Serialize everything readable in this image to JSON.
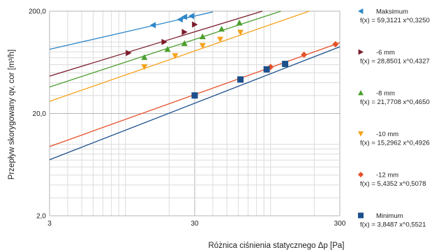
{
  "chart_data": {
    "type": "scatter",
    "xlabel": "Różnica ciśnienia statycznego Δp [Pa]",
    "ylabel": "Przepływ skorygowany qv, cor [m³/h]",
    "x_scale": "log",
    "y_scale": "log",
    "xlim": [
      3,
      300
    ],
    "ylim": [
      2,
      200
    ],
    "x_ticks": [
      "3",
      "30",
      "300"
    ],
    "y_ticks": [
      "2,0",
      "20,0",
      "200,0"
    ],
    "grid": true,
    "legend_position": "right",
    "series": [
      {
        "name": "Maksimum",
        "equation": "f(x) = 59,3121 x^0,3250",
        "coef": 59.3121,
        "exp": 0.325,
        "color": "#2e86c8",
        "marker": "triangle-left",
        "fit_range": [
          3,
          40
        ],
        "points": [
          [
            15.5,
            146
          ],
          [
            23.8,
            166
          ],
          [
            25.5,
            176
          ],
          [
            28.5,
            179
          ]
        ]
      },
      {
        "name": "-6 mm",
        "equation": "f(x) = 28,8501 x^0,4327",
        "coef": 28.8501,
        "exp": 0.4327,
        "color": "#7b1b2c",
        "marker": "triangle-right",
        "fit_range": [
          3,
          130
        ],
        "points": [
          [
            10.5,
            78
          ],
          [
            18.5,
            100
          ],
          [
            25.5,
            125
          ],
          [
            30,
            148
          ]
        ]
      },
      {
        "name": "-8 mm",
        "equation": "f(x) = 21,7708 x^0,4650",
        "coef": 21.7708,
        "exp": 0.465,
        "color": "#4b9f2e",
        "marker": "triangle-up",
        "fit_range": [
          3,
          230
        ],
        "points": [
          [
            13.5,
            71
          ],
          [
            19.5,
            85
          ],
          [
            25.5,
            97
          ],
          [
            34,
            113
          ],
          [
            46,
            134
          ],
          [
            61,
            154
          ]
        ]
      },
      {
        "name": "-10 mm",
        "equation": "f(x) = 15,2962 x^0,4926",
        "coef": 15.2962,
        "exp": 0.4926,
        "color": "#f5a21c",
        "marker": "triangle-down",
        "fit_range": [
          3,
          240
        ],
        "points": [
          [
            13.5,
            57
          ],
          [
            22,
            73
          ],
          [
            34,
            92
          ],
          [
            45,
            106
          ],
          [
            62,
            124
          ]
        ]
      },
      {
        "name": "-12 mm",
        "equation": "f(x) = 5,4352 x^0,5078",
        "coef": 5.4352,
        "exp": 0.5078,
        "color": "#e6502a",
        "marker": "diamond",
        "fit_range": [
          3,
          300
        ],
        "points": [
          [
            100,
            57
          ],
          [
            170,
            75
          ],
          [
            280,
            95
          ]
        ]
      },
      {
        "name": "Minimum",
        "equation": "f(x) = 3,8487 x^0,5521",
        "coef": 3.8487,
        "exp": 0.5521,
        "color": "#1c4f8c",
        "marker": "square",
        "fit_range": [
          3,
          300
        ],
        "points": [
          [
            30,
            30
          ],
          [
            62,
            43
          ],
          [
            94,
            54
          ],
          [
            126,
            61
          ]
        ]
      }
    ]
  }
}
